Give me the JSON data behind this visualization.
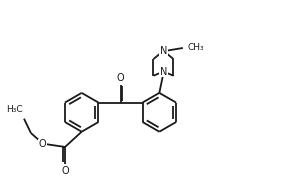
{
  "bg_color": "#ffffff",
  "line_color": "#1a1a1a",
  "line_width": 1.3,
  "font_size": 6.5,
  "fig_width": 3.02,
  "fig_height": 1.83,
  "dpi": 100,
  "xlim": [
    0,
    10
  ],
  "ylim": [
    -1,
    5.5
  ]
}
